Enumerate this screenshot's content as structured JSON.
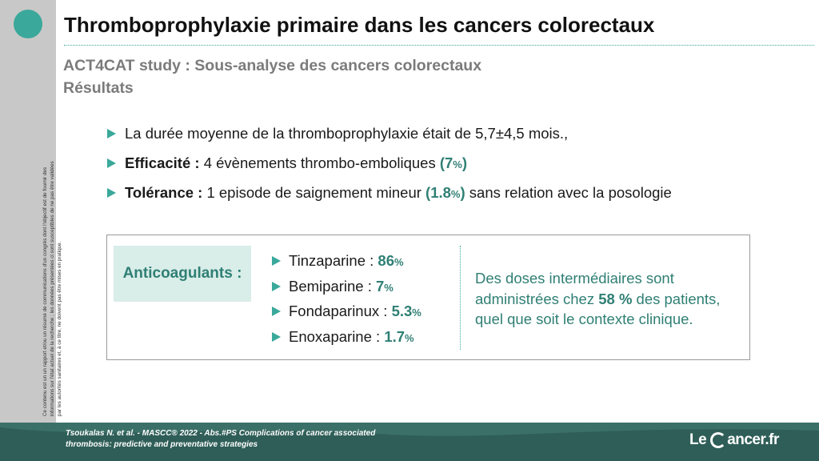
{
  "title": "Thromboprophylaxie primaire dans les cancers colorectaux",
  "subtitle": {
    "line1": "ACT4CAT study : Sous-analyse des cancers colorectaux",
    "line2": "Résultats"
  },
  "side_note": "Ce contenu est un un rapport et/ou un résumé de communications d'un congrès dont l'objectif est de fournir des informations sur l'état actuel de la recherche ; les données présentées ci sont susceptibles de ne pas être validées par les autorités sanitaires et, à ce titre, ne doivent pas être mises en pratique.",
  "bullets": [
    {
      "text": "La durée moyenne de la thromboprophylaxie était de 5,7±4,5 mois.,"
    },
    {
      "label": "Efficacité :",
      "text": " 4 évènements thrombo-emboliques ",
      "value_open": "(7",
      "value_unit": "%",
      "value_close": ")"
    },
    {
      "label": "Tolérance :",
      "text": " 1 episode de saignement mineur ",
      "value_open": "(1.8",
      "value_unit": "%",
      "value_close": ")",
      "suffix": " sans relation avec la posologie"
    }
  ],
  "anticoagulants_label": "Anticoagulants :",
  "drugs": [
    {
      "name": "Tinzaparine : ",
      "value": "86",
      "unit": "%"
    },
    {
      "name": "Bemiparine : ",
      "value": "7",
      "unit": "%"
    },
    {
      "name": "Fondaparinux : ",
      "value": "5.3",
      "unit": "%"
    },
    {
      "name": "Enoxaparine : ",
      "value": "1.7",
      "unit": "%"
    }
  ],
  "note": {
    "before": "Des doses intermédiaires sont administrées chez ",
    "bold": "58 %",
    "after": " des patients, quel que soit le contexte clinique."
  },
  "footer": {
    "ref_line1": "Tsoukalas N. et al. - MASCC® 2022 - Abs.#PS Complications of cancer associated",
    "ref_line2": "thrombosis: predictive and preventative strategies",
    "logo_left": "Le",
    "logo_right": "ancer.fr"
  },
  "colors": {
    "accent": "#3aa89a",
    "accent_dark": "#2f7f74",
    "footer": "#2f5e58",
    "sidebar": "#c8c8c8",
    "highlight_box": "#d9ede9"
  }
}
